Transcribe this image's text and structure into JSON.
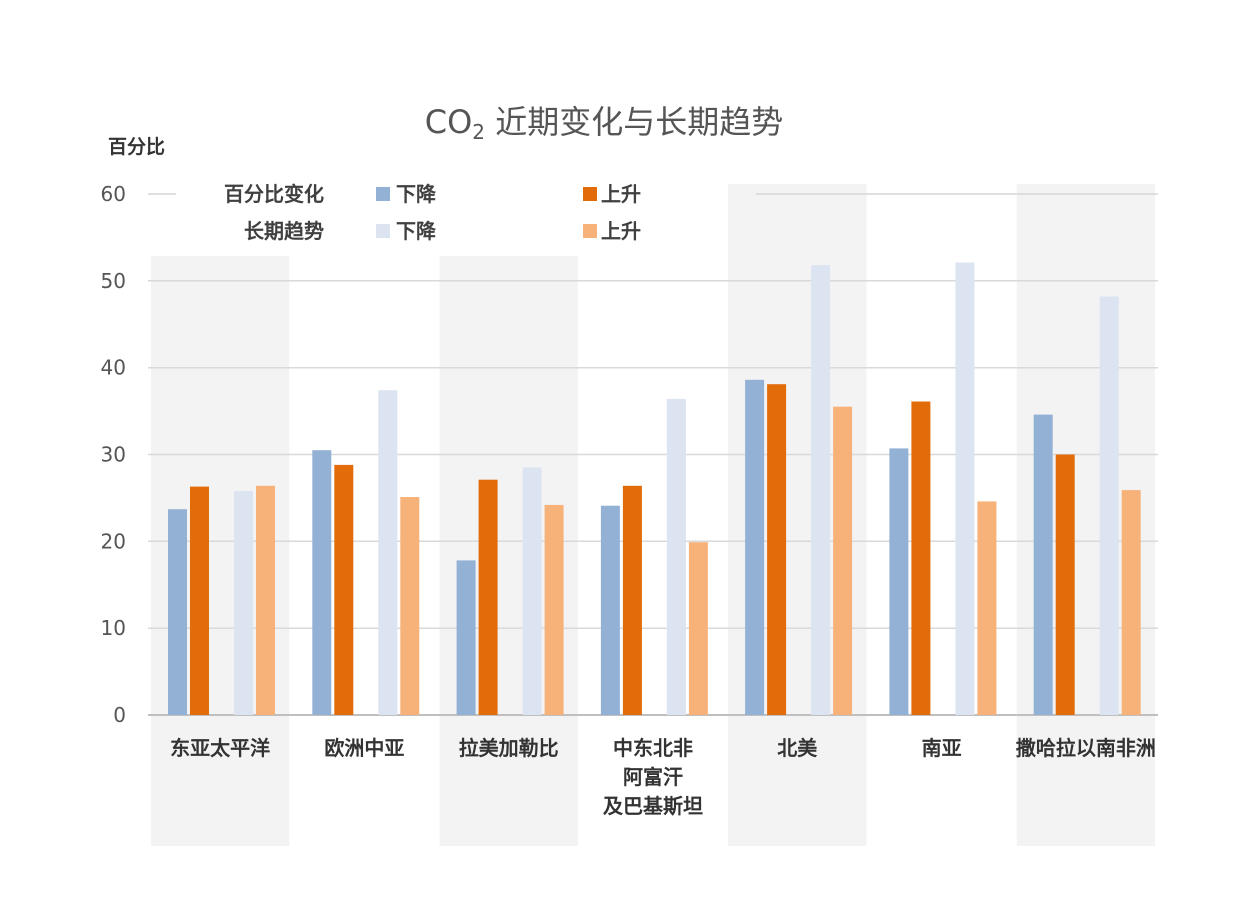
{
  "chart_data": {
    "type": "bar",
    "title": "CO2 近期变化与长期趋势",
    "title_main": "CO",
    "title_sub": "2",
    "title_rest": " 近期变化与长期趋势",
    "ylabel": "百分比",
    "xlabel": "",
    "ylim": [
      0,
      60
    ],
    "yticks": [
      0,
      10,
      20,
      30,
      40,
      50,
      60
    ],
    "grid": true,
    "categories": [
      [
        "东亚太平洋"
      ],
      [
        "欧洲中亚"
      ],
      [
        "拉美加勒比"
      ],
      [
        "中东北非",
        "阿富汗",
        "及巴基斯坦"
      ],
      [
        "北美"
      ],
      [
        "南亚"
      ],
      [
        "撒哈拉以南非洲"
      ]
    ],
    "series": [
      {
        "name": "百分比变化-下降",
        "color": "#93b1d5",
        "values": [
          23.7,
          30.5,
          17.8,
          24.1,
          38.6,
          30.7,
          34.6
        ]
      },
      {
        "name": "百分比变化-上升",
        "color": "#e36c0a",
        "values": [
          26.3,
          28.8,
          27.1,
          26.4,
          38.1,
          36.1,
          30.0
        ]
      },
      {
        "name": "长期趋势-下降",
        "color": "#dbe4f0",
        "values": [
          25.8,
          37.4,
          28.5,
          36.4,
          51.8,
          52.1,
          48.2
        ]
      },
      {
        "name": "长期趋势-上升",
        "color": "#f7b27a",
        "values": [
          26.4,
          25.1,
          24.2,
          19.9,
          35.5,
          24.6,
          25.9
        ]
      }
    ],
    "legend": {
      "row1_label": "百分比变化",
      "row2_label": "长期趋势",
      "down": "下降",
      "up": "上升"
    }
  }
}
